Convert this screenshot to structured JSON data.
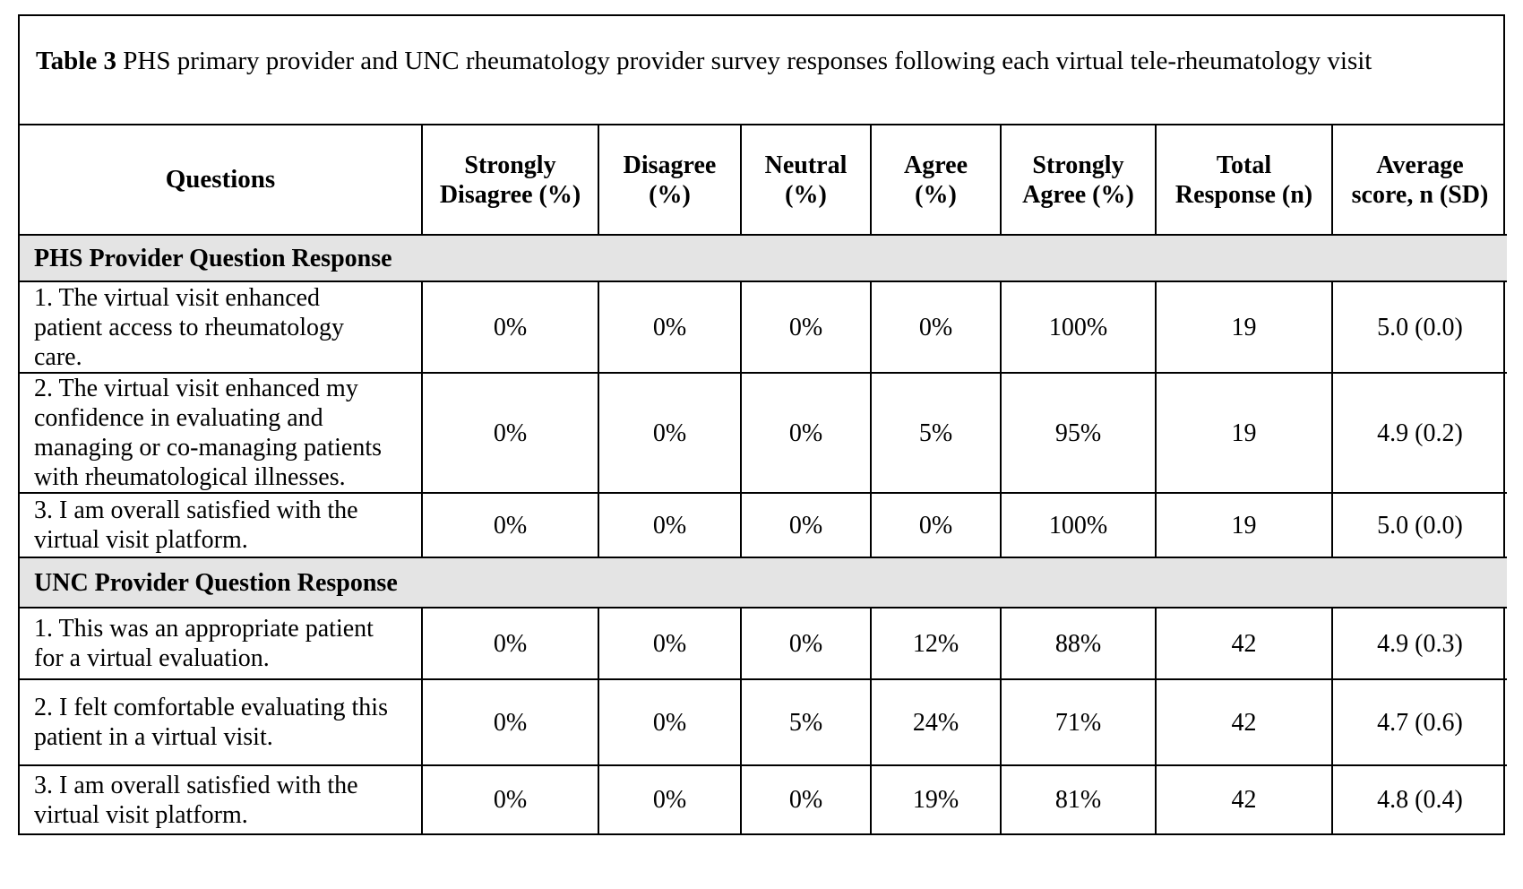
{
  "caption": {
    "label": "Table 3",
    "text": " PHS primary provider and UNC rheumatology provider survey responses following each virtual tele-rheumatology visit"
  },
  "headers": {
    "questions": "Questions",
    "strongly_disagree": [
      "Strongly",
      "Disagree (%)"
    ],
    "disagree": [
      "Disagree",
      "(%)"
    ],
    "neutral": [
      "Neutral",
      "(%)"
    ],
    "agree": [
      "Agree",
      "(%)"
    ],
    "strongly_agree": [
      "Strongly",
      "Agree (%)"
    ],
    "total_response": [
      "Total",
      "Response (n)"
    ],
    "average_score": [
      "Average",
      "score, n (SD)"
    ]
  },
  "sections": [
    {
      "title": "PHS Provider Question Response",
      "rows": [
        {
          "question": [
            "1. The virtual visit enhanced",
            "patient access to rheumatology",
            "care."
          ],
          "strongly_disagree": "0%",
          "disagree": "0%",
          "neutral": "0%",
          "agree": "0%",
          "strongly_agree": "100%",
          "total": "19",
          "average": "5.0 (0.0)"
        },
        {
          "question": [
            "2. The virtual visit enhanced my",
            "confidence in evaluating and",
            "managing or co-managing patients",
            "with rheumatological illnesses."
          ],
          "strongly_disagree": "0%",
          "disagree": "0%",
          "neutral": "0%",
          "agree": "5%",
          "strongly_agree": "95%",
          "total": "19",
          "average": "4.9 (0.2)"
        },
        {
          "question": [
            "3. I am overall satisfied with the",
            "virtual visit platform."
          ],
          "strongly_disagree": "0%",
          "disagree": "0%",
          "neutral": "0%",
          "agree": "0%",
          "strongly_agree": "100%",
          "total": "19",
          "average": "5.0 (0.0)"
        }
      ]
    },
    {
      "title": "UNC Provider Question Response",
      "rows": [
        {
          "question": [
            "1. This was an appropriate patient",
            "for a virtual evaluation."
          ],
          "strongly_disagree": "0%",
          "disagree": "0%",
          "neutral": "0%",
          "agree": "12%",
          "strongly_agree": "88%",
          "total": "42",
          "average": "4.9 (0.3)"
        },
        {
          "question": [
            "2. I felt comfortable evaluating this",
            "patient in a virtual visit."
          ],
          "strongly_disagree": "0%",
          "disagree": "0%",
          "neutral": "5%",
          "agree": "24%",
          "strongly_agree": "71%",
          "total": "42",
          "average": "4.7 (0.6)"
        },
        {
          "question": [
            "3. I am overall satisfied with the",
            "virtual visit platform."
          ],
          "strongly_disagree": "0%",
          "disagree": "0%",
          "neutral": "0%",
          "agree": "19%",
          "strongly_agree": "81%",
          "total": "42",
          "average": "4.8 (0.4)"
        }
      ]
    }
  ]
}
